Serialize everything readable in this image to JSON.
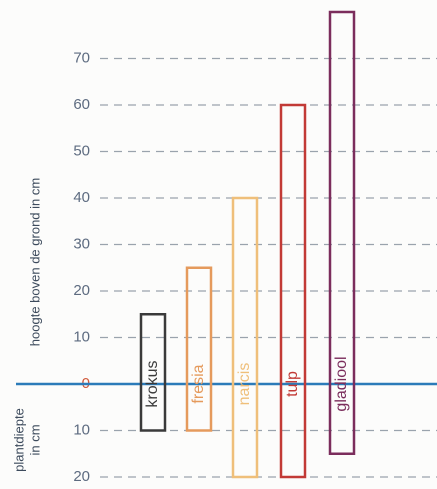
{
  "chart_data": {
    "type": "range-bar",
    "ylabel": "hoogte boven de grond in cm",
    "ylabel_below": [
      "plantdiepte",
      "in cm"
    ],
    "categories": [
      "krokus",
      "fresia",
      "narcis",
      "tulp",
      "gladiool"
    ],
    "lows": [
      -10,
      -10,
      -20,
      -20,
      -15
    ],
    "values": [
      15,
      25,
      40,
      60,
      80
    ],
    "colors": [
      "#3a3a3a",
      "#e59a5c",
      "#efbf7a",
      "#c23a36",
      "#7b2d5c"
    ],
    "ylim": [
      -20,
      80
    ],
    "yticks": [
      {
        "value": -20,
        "label": "20"
      },
      {
        "value": -10,
        "label": "10"
      },
      0,
      10,
      20,
      30,
      40,
      50,
      60,
      70
    ],
    "ground_color": "#2b7bb9",
    "grid": true
  }
}
